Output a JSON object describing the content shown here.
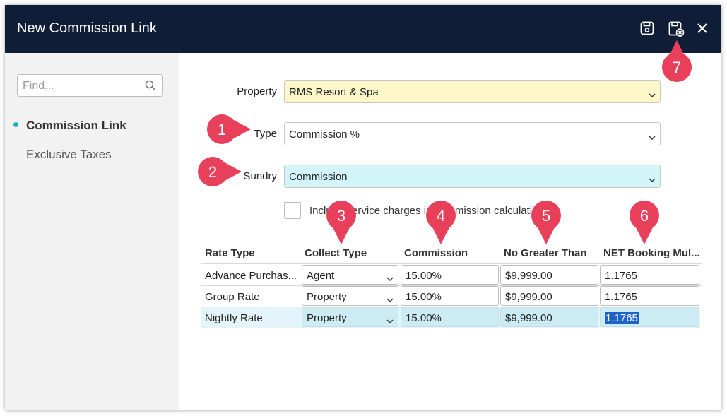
{
  "window": {
    "title": "New Commission Link"
  },
  "titlebar_icons": [
    "save-icon",
    "save-close-icon",
    "close-icon"
  ],
  "sidebar": {
    "search_placeholder": "Find...",
    "items": [
      {
        "label": "Commission Link",
        "active": true
      },
      {
        "label": "Exclusive Taxes",
        "active": false
      }
    ]
  },
  "form": {
    "property": {
      "label": "Property",
      "value": "RMS Resort & Spa"
    },
    "type": {
      "label": "Type",
      "value": "Commission %"
    },
    "sundry": {
      "label": "Sundry",
      "value": "Commission"
    },
    "include_service_charges": {
      "label": "Include service charges in commission calculation",
      "checked": false
    }
  },
  "grid": {
    "headers": [
      "Rate Type",
      "Collect Type",
      "Commission",
      "No Greater Than",
      "NET Booking Mul..."
    ],
    "rows": [
      {
        "rate_type": "Advance Purchas...",
        "collect_type": "Agent",
        "commission": "15.00%",
        "no_greater_than": "$9,999.00",
        "net_booking_mul": "1.1765"
      },
      {
        "rate_type": "Group Rate",
        "collect_type": "Property",
        "commission": "15.00%",
        "no_greater_than": "$9,999.00",
        "net_booking_mul": "1.1765"
      },
      {
        "rate_type": "Nightly Rate",
        "collect_type": "Property",
        "commission": "15.00%",
        "no_greater_than": "$9,999.00",
        "net_booking_mul": "1.1765"
      }
    ]
  },
  "annotations": [
    "1",
    "2",
    "3",
    "4",
    "5",
    "6",
    "7"
  ],
  "colors": {
    "titlebar": "#0f1e36",
    "property_field": "#fdf7c9",
    "sundry_field": "#d3f4f8",
    "accent": "#1ab0c4",
    "badge": "#e8405b",
    "selection": "#1d63c9"
  }
}
